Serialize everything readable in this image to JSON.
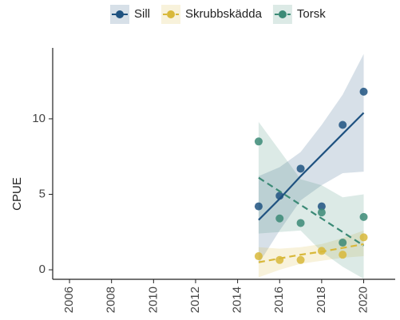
{
  "chart_data": {
    "type": "scatter",
    "y_label": "CPUE",
    "x": [
      2015,
      2016,
      2017,
      2018,
      2019,
      2020
    ],
    "xlim": [
      2005.2,
      2021.5
    ],
    "xticks": [
      2006,
      2008,
      2010,
      2012,
      2014,
      2016,
      2018,
      2020
    ],
    "ylim": [
      -0.63,
      14.7
    ],
    "yticks": [
      0,
      5,
      10
    ],
    "series": [
      {
        "name": "Sill",
        "color": "#1f5280",
        "linestyle": "solid",
        "values": [
          4.2,
          4.9,
          6.7,
          4.2,
          9.6,
          11.8
        ],
        "trend": [
          3.3,
          4.7,
          6.2,
          7.6,
          9.0,
          10.4
        ],
        "lower": [
          0.4,
          2.6,
          4.6,
          5.6,
          6.4,
          6.5
        ],
        "upper": [
          6.2,
          6.8,
          7.8,
          9.6,
          11.6,
          14.3
        ]
      },
      {
        "name": "Skrubbskädda",
        "color": "#d8b83a",
        "linestyle": "dashed",
        "values": [
          0.9,
          0.65,
          0.65,
          1.25,
          1.0,
          2.15
        ],
        "trend": [
          0.5,
          0.75,
          1.0,
          1.2,
          1.45,
          1.7
        ],
        "lower": [
          -0.5,
          0.0,
          0.4,
          0.6,
          0.8,
          0.9
        ],
        "upper": [
          1.5,
          1.4,
          1.5,
          1.7,
          2.1,
          2.6
        ]
      },
      {
        "name": "Torsk",
        "color": "#3b8a76",
        "linestyle": "dashed",
        "values": [
          8.5,
          3.4,
          3.1,
          3.8,
          1.8,
          3.5
        ],
        "trend": [
          6.1,
          5.2,
          4.3,
          3.4,
          2.5,
          1.6
        ],
        "lower": [
          2.4,
          2.5,
          2.6,
          1.2,
          0.2,
          -0.6
        ],
        "upper": [
          9.8,
          7.9,
          6.0,
          5.6,
          4.8,
          5.0
        ]
      }
    ]
  }
}
